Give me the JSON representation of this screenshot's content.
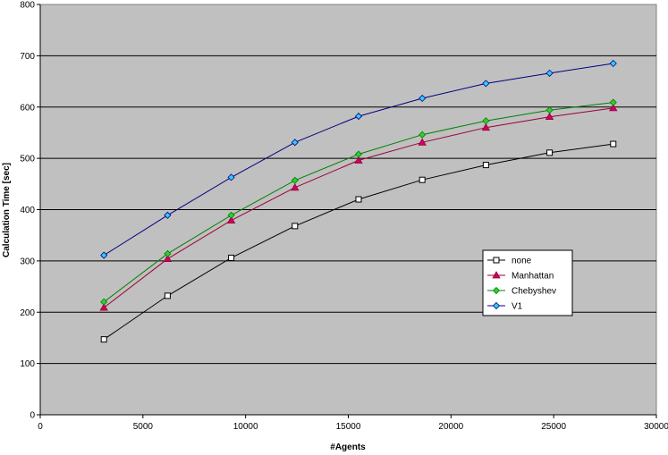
{
  "chart_data": {
    "type": "line",
    "title": "",
    "xlabel": "#Agents",
    "ylabel": "Calculation Time [sec]",
    "xlim": [
      0,
      30000
    ],
    "ylim": [
      0,
      800
    ],
    "x_ticks": [
      "0",
      "5000",
      "10000",
      "15000",
      "20000",
      "25000",
      "30000"
    ],
    "y_ticks": [
      "0",
      "100",
      "200",
      "300",
      "400",
      "500",
      "600",
      "700",
      "800"
    ],
    "grid": "horizontal",
    "background": "#c0c0c0",
    "legend_position": "right-middle",
    "x": [
      3100,
      6200,
      9300,
      12400,
      15500,
      18600,
      21700,
      24800,
      27900
    ],
    "series": [
      {
        "name": "none",
        "color": "#000000",
        "marker": "square",
        "values": [
          147,
          232,
          306,
          368,
          420,
          458,
          487,
          511,
          528
        ]
      },
      {
        "name": "Manhattan",
        "color": "#990033",
        "marker": "triangle",
        "values": [
          209,
          304,
          379,
          443,
          496,
          531,
          560,
          581,
          598
        ]
      },
      {
        "name": "Chebyshev",
        "color": "#008000",
        "marker": "diamond",
        "values": [
          220,
          314,
          389,
          457,
          508,
          546,
          573,
          594,
          609
        ]
      },
      {
        "name": "V1",
        "color": "#000080",
        "marker": "diamond-cyan",
        "values": [
          311,
          389,
          463,
          531,
          582,
          617,
          646,
          666,
          685
        ]
      }
    ]
  }
}
